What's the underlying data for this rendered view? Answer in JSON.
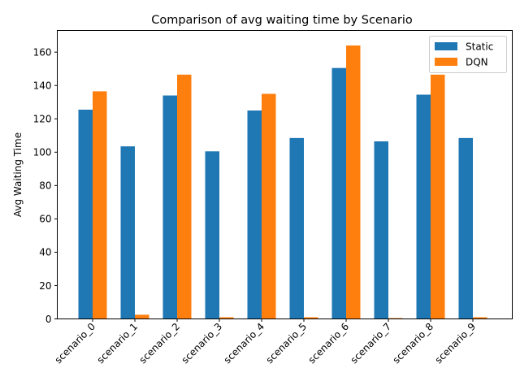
{
  "chart_data": {
    "type": "bar",
    "title": "Comparison of avg waiting time by Scenario",
    "xlabel": "",
    "ylabel": "Avg Waiting Time",
    "ylim": [
      0,
      173
    ],
    "yticks": [
      0,
      20,
      40,
      60,
      80,
      100,
      120,
      140,
      160
    ],
    "grid": false,
    "legend_position": "top-right",
    "categories": [
      "scenario_0",
      "scenario_1",
      "scenario_2",
      "scenario_3",
      "scenario_4",
      "scenario_5",
      "scenario_6",
      "scenario_7",
      "scenario_8",
      "scenario_9"
    ],
    "series": [
      {
        "name": "Static",
        "color": "#1f77b4",
        "values": [
          125.5,
          103.5,
          134.0,
          100.5,
          125.0,
          108.5,
          150.5,
          106.5,
          134.5,
          108.5
        ]
      },
      {
        "name": "DQN",
        "color": "#ff7f0e",
        "values": [
          136.5,
          2.5,
          146.5,
          1.0,
          135.0,
          1.0,
          164.0,
          0.5,
          146.5,
          1.0
        ]
      }
    ]
  }
}
